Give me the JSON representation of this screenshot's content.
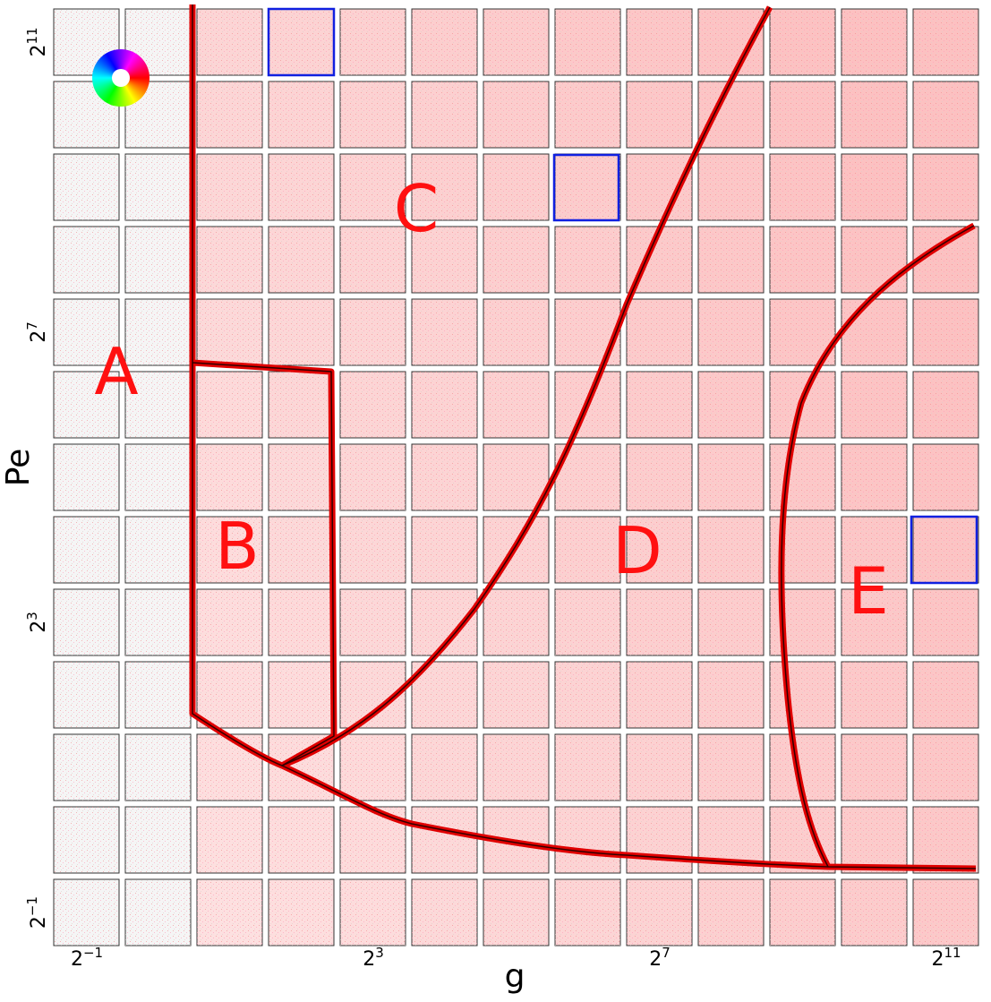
{
  "figure": {
    "x_label": "g",
    "y_label": "Pe",
    "x_ticks": [
      {
        "base": "2",
        "exp": "−1"
      },
      {
        "base": "2",
        "exp": "3"
      },
      {
        "base": "2",
        "exp": "7"
      },
      {
        "base": "2",
        "exp": "11"
      }
    ],
    "y_ticks": [
      {
        "base": "2",
        "exp": "11"
      },
      {
        "base": "2",
        "exp": "7"
      },
      {
        "base": "2",
        "exp": "3"
      },
      {
        "base": "2",
        "exp": "−1"
      }
    ],
    "regions": [
      "A",
      "B",
      "C",
      "D",
      "E"
    ]
  }
}
